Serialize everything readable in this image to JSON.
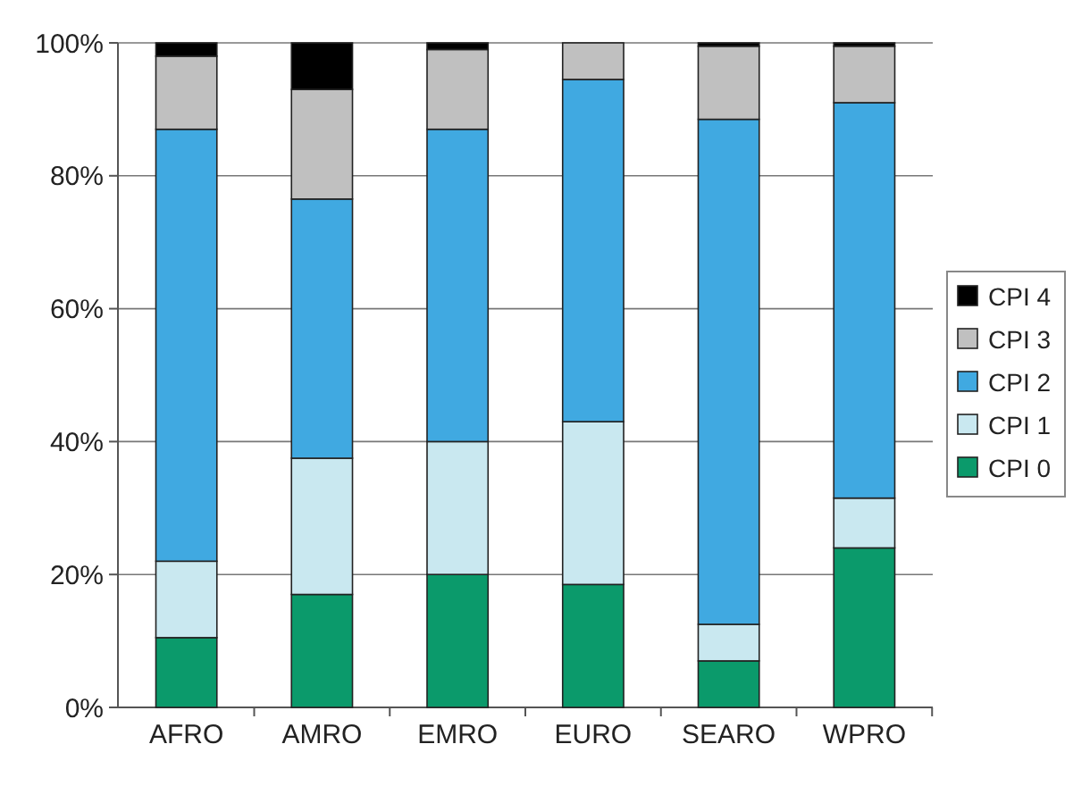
{
  "chart_data": {
    "type": "bar",
    "stacked": true,
    "categories": [
      "AFRO",
      "AMRO",
      "EMRO",
      "EURO",
      "SEARO",
      "WPRO"
    ],
    "series": [
      {
        "name": "CPI 0",
        "color": "#0b9a6b",
        "values": [
          10.5,
          17,
          20,
          18.5,
          7,
          24
        ]
      },
      {
        "name": "CPI 1",
        "color": "#c9e8f0",
        "values": [
          11.5,
          20.5,
          20,
          24.5,
          5.5,
          7.5
        ]
      },
      {
        "name": "CPI 2",
        "color": "#40a9e1",
        "values": [
          65,
          39,
          47,
          51.5,
          76,
          59.5
        ]
      },
      {
        "name": "CPI 3",
        "color": "#c0c0c0",
        "values": [
          11,
          16.5,
          12,
          5.5,
          11,
          8.5
        ]
      },
      {
        "name": "CPI 4",
        "color": "#000000",
        "values": [
          2,
          7,
          1,
          0,
          0.5,
          0.5
        ]
      }
    ],
    "ylim": [
      0,
      100
    ],
    "yticks": [
      {
        "value": 0,
        "label": "0%"
      },
      {
        "value": 20,
        "label": "20%"
      },
      {
        "value": 40,
        "label": "40%"
      },
      {
        "value": 60,
        "label": "60%"
      },
      {
        "value": 80,
        "label": "80%"
      },
      {
        "value": 100,
        "label": "100%"
      }
    ],
    "grid": "y",
    "legend": "right"
  }
}
